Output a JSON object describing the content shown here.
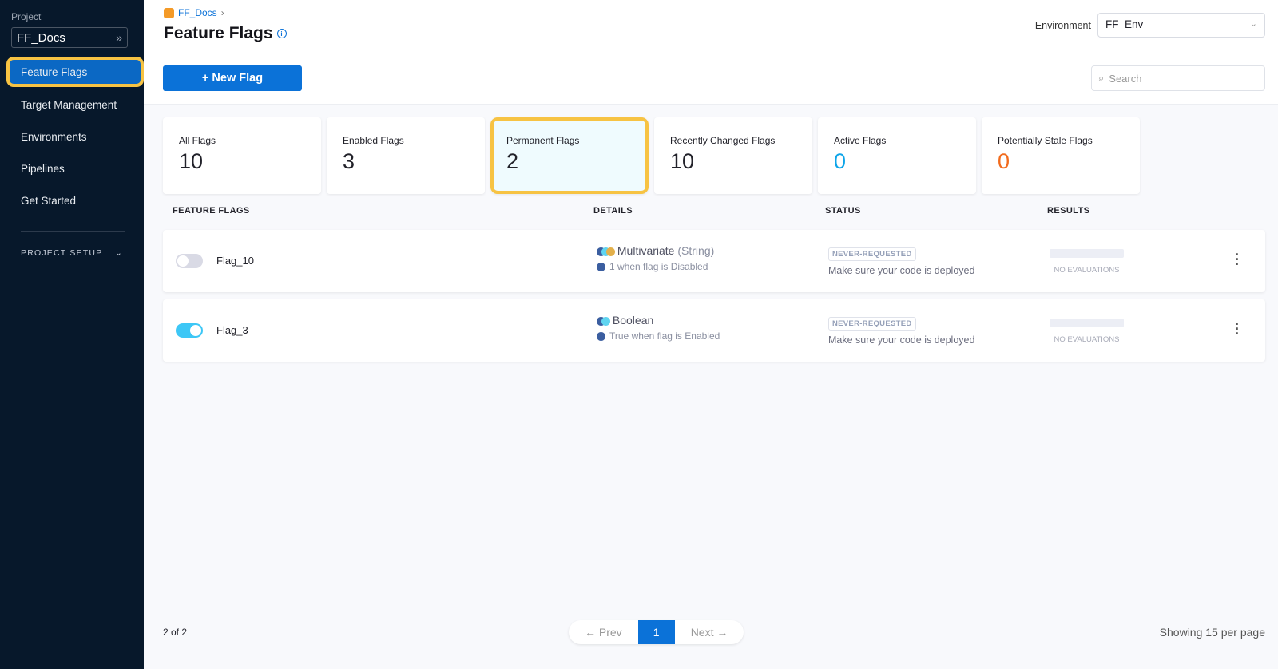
{
  "sidebar": {
    "project_label": "Project",
    "project_name": "FF_Docs",
    "items": [
      {
        "label": "Feature Flags"
      },
      {
        "label": "Target Management"
      },
      {
        "label": "Environments"
      },
      {
        "label": "Pipelines"
      },
      {
        "label": "Get Started"
      }
    ],
    "setup_label": "PROJECT SETUP"
  },
  "header": {
    "breadcrumb": "FF_Docs",
    "title": "Feature Flags",
    "environment_label": "Environment",
    "environment_value": "FF_Env"
  },
  "toolbar": {
    "new_flag": "+ New Flag",
    "search_placeholder": "Search"
  },
  "cards": [
    {
      "label": "All Flags",
      "value": "10"
    },
    {
      "label": "Enabled Flags",
      "value": "3"
    },
    {
      "label": "Permanent Flags",
      "value": "2"
    },
    {
      "label": "Recently Changed Flags",
      "value": "10"
    },
    {
      "label": "Active Flags",
      "value": "0",
      "color": "#0ea5e9"
    },
    {
      "label": "Potentially Stale Flags",
      "value": "0",
      "color": "#f26b1d"
    }
  ],
  "columns": {
    "flags": "FEATURE FLAGS",
    "details": "DETAILS",
    "status": "STATUS",
    "results": "RESULTS"
  },
  "flags": [
    {
      "name": "Flag_10",
      "enabled": false,
      "type": "Multivariate",
      "subtype": "(String)",
      "detail": "1 when flag is Disabled",
      "status": "NEVER-REQUESTED",
      "status_msg": "Make sure your code is deployed",
      "results": "NO EVALUATIONS"
    },
    {
      "name": "Flag_3",
      "enabled": true,
      "type": "Boolean",
      "subtype": "",
      "detail": "True when flag is Enabled",
      "status": "NEVER-REQUESTED",
      "status_msg": "Make sure your code is deployed",
      "results": "NO EVALUATIONS"
    }
  ],
  "footer": {
    "count": "2 of 2",
    "prev": "← Prev",
    "page": "1",
    "next": "Next →",
    "per_page": "Showing 15 per page"
  }
}
